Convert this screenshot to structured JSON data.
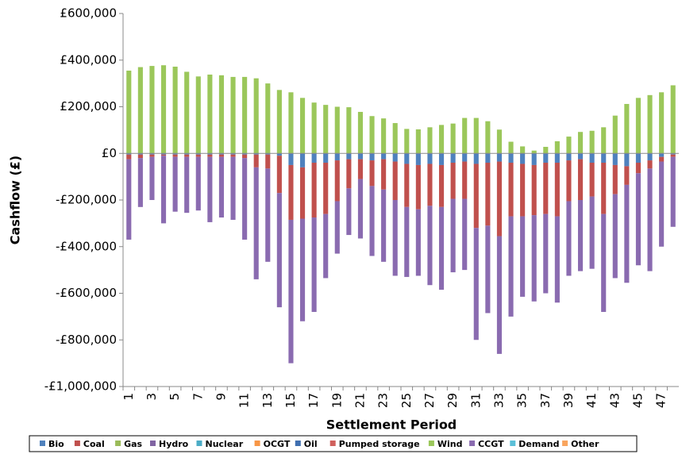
{
  "chart_data": {
    "type": "stacked-bar",
    "x_label": "Settlement Period",
    "y_label": "Cashflow (£)",
    "categories": [
      "1",
      null,
      "3",
      null,
      "5",
      null,
      "7",
      null,
      "9",
      null,
      "11",
      null,
      "13",
      null,
      "15",
      null,
      "17",
      null,
      "19",
      null,
      "21",
      null,
      "23",
      null,
      "25",
      null,
      "27",
      null,
      "29",
      null,
      "31",
      null,
      "33",
      null,
      "35",
      null,
      "37",
      null,
      "39",
      null,
      "41",
      null,
      "43",
      null,
      "45",
      null,
      "47",
      null
    ],
    "ylim": [
      -1000000,
      600000
    ],
    "yticks": [
      {
        "value": -1000000,
        "label": "-£1,000,000"
      },
      {
        "value": -800000,
        "label": "-£800,000"
      },
      {
        "value": -600000,
        "label": "-£600,000"
      },
      {
        "value": -400000,
        "label": "-£400,000"
      },
      {
        "value": -200000,
        "label": "-£200,000"
      },
      {
        "value": 0,
        "label": "£0"
      },
      {
        "value": 200000,
        "label": "£200,000"
      },
      {
        "value": 400000,
        "label": "£400,000"
      },
      {
        "value": 600000,
        "label": "£600,000"
      }
    ],
    "grid": false,
    "series": [
      {
        "name": "Bio",
        "color": "#4f81bd",
        "values": [
          -5000,
          -5000,
          -5000,
          -5000,
          -5000,
          -5000,
          -5000,
          -5000,
          -5000,
          -5000,
          -5000,
          -5000,
          -5000,
          -10000,
          -50000,
          -60000,
          -40000,
          -40000,
          -30000,
          -25000,
          -25000,
          -30000,
          -25000,
          -35000,
          -45000,
          -50000,
          -45000,
          -50000,
          -40000,
          -35000,
          -45000,
          -40000,
          -35000,
          -40000,
          -45000,
          -50000,
          -40000,
          -40000,
          -30000,
          -25000,
          -40000,
          -40000,
          -50000,
          -55000,
          -40000,
          -30000,
          -15000,
          -5000
        ]
      },
      {
        "name": "Coal",
        "color": "#c0504d",
        "values": [
          -20000,
          -15000,
          -10000,
          -5000,
          -10000,
          -10000,
          -10000,
          -10000,
          -10000,
          -10000,
          -15000,
          -55000,
          -60000,
          -160000,
          -235000,
          -220000,
          -235000,
          -220000,
          -175000,
          -125000,
          -85000,
          -110000,
          -130000,
          -165000,
          -185000,
          -190000,
          -180000,
          -180000,
          -155000,
          -160000,
          -275000,
          -270000,
          -320000,
          -230000,
          -225000,
          -215000,
          -220000,
          -230000,
          -175000,
          -175000,
          -145000,
          -220000,
          -125000,
          -80000,
          -45000,
          -35000,
          -20000,
          -10000
        ]
      },
      {
        "name": "Gas",
        "color": "#9bbb59",
        "values": [
          0,
          0,
          0,
          0,
          0,
          0,
          0,
          0,
          0,
          0,
          0,
          0,
          0,
          0,
          0,
          0,
          0,
          0,
          0,
          0,
          0,
          0,
          0,
          0,
          0,
          0,
          0,
          0,
          0,
          0,
          0,
          0,
          0,
          0,
          0,
          0,
          0,
          0,
          0,
          0,
          0,
          0,
          0,
          0,
          0,
          0,
          0,
          0
        ]
      },
      {
        "name": "Hydro",
        "color": "#8064a2",
        "values": [
          0,
          0,
          0,
          0,
          0,
          0,
          0,
          0,
          0,
          0,
          0,
          0,
          0,
          0,
          0,
          0,
          0,
          0,
          0,
          0,
          0,
          0,
          0,
          0,
          0,
          0,
          0,
          0,
          0,
          0,
          0,
          0,
          0,
          0,
          0,
          0,
          0,
          0,
          0,
          0,
          0,
          0,
          0,
          0,
          0,
          0,
          0,
          0
        ]
      },
      {
        "name": "Nuclear",
        "color": "#4bacc6",
        "values": [
          0,
          0,
          0,
          0,
          0,
          0,
          0,
          0,
          0,
          0,
          0,
          0,
          0,
          0,
          0,
          0,
          0,
          0,
          0,
          0,
          0,
          0,
          0,
          0,
          0,
          0,
          0,
          0,
          0,
          0,
          0,
          0,
          0,
          0,
          0,
          0,
          0,
          0,
          0,
          0,
          0,
          0,
          0,
          0,
          0,
          0,
          0,
          0
        ]
      },
      {
        "name": "OCGT",
        "color": "#f79646",
        "values": [
          0,
          0,
          0,
          0,
          0,
          0,
          0,
          0,
          0,
          0,
          0,
          0,
          0,
          0,
          0,
          0,
          0,
          0,
          0,
          0,
          0,
          0,
          0,
          0,
          0,
          0,
          0,
          0,
          0,
          0,
          0,
          0,
          0,
          0,
          0,
          0,
          0,
          0,
          0,
          0,
          0,
          0,
          0,
          0,
          0,
          0,
          0,
          0
        ]
      },
      {
        "name": "Oil",
        "color": "#3f6fb0",
        "values": [
          0,
          0,
          0,
          0,
          0,
          0,
          0,
          0,
          0,
          0,
          0,
          0,
          0,
          0,
          0,
          0,
          0,
          0,
          0,
          0,
          0,
          0,
          0,
          0,
          0,
          0,
          0,
          0,
          0,
          0,
          0,
          0,
          0,
          0,
          0,
          0,
          0,
          0,
          0,
          0,
          0,
          0,
          0,
          0,
          0,
          0,
          0,
          0
        ]
      },
      {
        "name": "Pumped storage",
        "color": "#d0605c",
        "values": [
          0,
          0,
          0,
          0,
          0,
          0,
          0,
          0,
          0,
          0,
          0,
          0,
          0,
          0,
          0,
          0,
          0,
          0,
          0,
          0,
          0,
          0,
          0,
          0,
          0,
          0,
          0,
          0,
          0,
          0,
          0,
          0,
          0,
          0,
          0,
          0,
          0,
          0,
          0,
          0,
          0,
          0,
          0,
          0,
          0,
          0,
          0,
          0
        ]
      },
      {
        "name": "Wind",
        "color": "#9bc75a",
        "values": [
          355000,
          370000,
          375000,
          378000,
          372000,
          350000,
          330000,
          338000,
          335000,
          328000,
          328000,
          322000,
          300000,
          272000,
          262000,
          238000,
          218000,
          208000,
          200000,
          198000,
          178000,
          160000,
          150000,
          130000,
          105000,
          103000,
          112000,
          122000,
          128000,
          152000,
          152000,
          138000,
          102000,
          50000,
          30000,
          12000,
          28000,
          52000,
          72000,
          92000,
          97000,
          112000,
          162000,
          212000,
          238000,
          250000,
          262000,
          292000
        ]
      },
      {
        "name": "CCGT",
        "color": "#8a6bb0",
        "values": [
          -345000,
          -210000,
          -185000,
          -290000,
          -235000,
          -240000,
          -230000,
          -280000,
          -260000,
          -270000,
          -350000,
          -480000,
          -400000,
          -490000,
          -615000,
          -440000,
          -405000,
          -275000,
          -225000,
          -200000,
          -255000,
          -300000,
          -310000,
          -325000,
          -300000,
          -285000,
          -340000,
          -355000,
          -315000,
          -305000,
          -480000,
          -375000,
          -505000,
          -430000,
          -345000,
          -370000,
          -340000,
          -370000,
          -320000,
          -305000,
          -310000,
          -420000,
          -360000,
          -420000,
          -395000,
          -440000,
          -365000,
          -300000
        ]
      },
      {
        "name": "Demand",
        "color": "#5bc0d8",
        "values": [
          0,
          0,
          0,
          0,
          0,
          0,
          0,
          0,
          0,
          0,
          0,
          0,
          0,
          0,
          0,
          0,
          0,
          0,
          0,
          0,
          0,
          0,
          0,
          0,
          0,
          0,
          0,
          0,
          0,
          0,
          0,
          0,
          0,
          0,
          0,
          0,
          0,
          0,
          0,
          0,
          0,
          0,
          0,
          0,
          0,
          0,
          0,
          0
        ]
      },
      {
        "name": "Other",
        "color": "#f9a55e",
        "values": [
          0,
          0,
          0,
          0,
          0,
          0,
          0,
          0,
          0,
          0,
          0,
          0,
          0,
          0,
          0,
          0,
          0,
          0,
          0,
          0,
          0,
          0,
          0,
          0,
          0,
          0,
          0,
          0,
          0,
          0,
          0,
          0,
          0,
          0,
          0,
          0,
          0,
          0,
          0,
          0,
          0,
          0,
          0,
          0,
          0,
          0,
          0,
          0
        ]
      }
    ]
  }
}
